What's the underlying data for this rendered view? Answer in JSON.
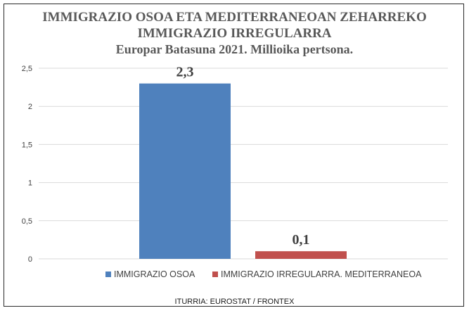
{
  "chart_data": {
    "type": "bar",
    "title": "IMMIGRAZIO OSOA ETA MEDITERRANEOAN ZEHARREKO",
    "title_line2": "IMMIGRAZIO IRREGULARRA",
    "subtitle": "Europar Batasuna 2021. Millioika pertsona.",
    "categories": [
      "IMMIGRAZIO OSOA",
      "IMMIGRAZIO IRREGULARRA. MEDITERRANEOA"
    ],
    "values": [
      2.3,
      0.1
    ],
    "value_labels": [
      "2,3",
      "0,1"
    ],
    "colors": [
      "#4f81bd",
      "#c0504d"
    ],
    "ylim": [
      0,
      2.5
    ],
    "yticks": [
      0,
      0.5,
      1,
      1.5,
      2,
      2.5
    ],
    "ytick_labels": [
      "0",
      "0,5",
      "1",
      "1,5",
      "2",
      "2,5"
    ],
    "grid": true,
    "legend": "bottom-right",
    "xlabel": "",
    "ylabel": ""
  },
  "source": "ITURRIA: EUROSTAT / FRONTEX"
}
